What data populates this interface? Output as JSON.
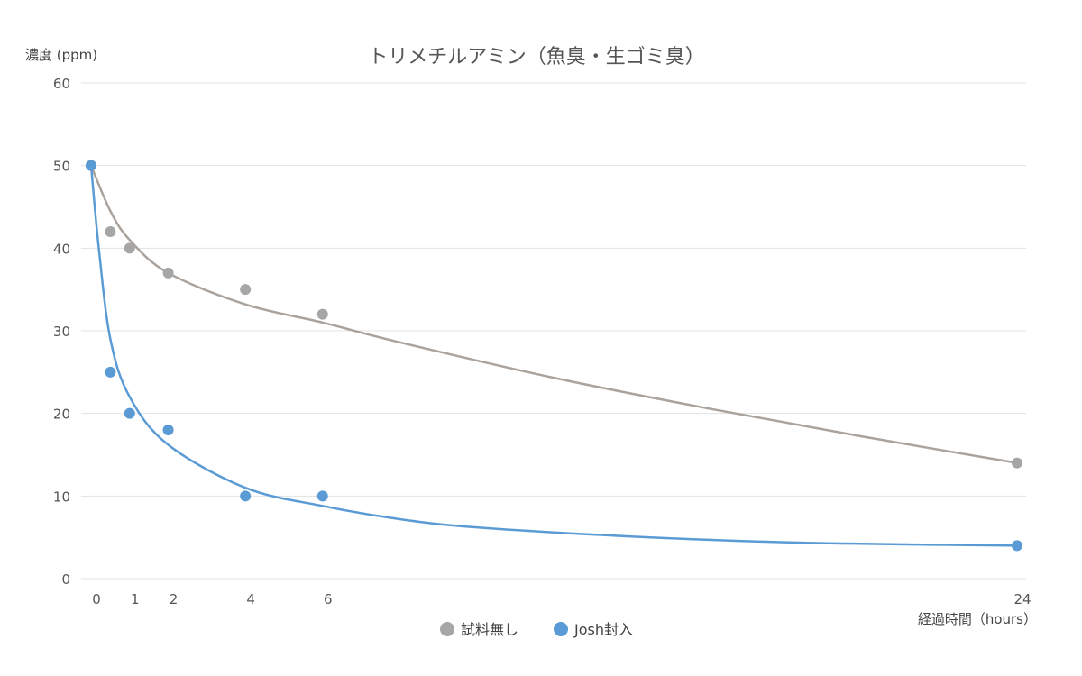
{
  "chart_data": {
    "type": "scatter",
    "title": "トリメチルアミン（魚臭・生ゴミ臭）",
    "ylabel": "濃度 (ppm)",
    "xlabel": "経過時間（hours）",
    "ylim": [
      0,
      60
    ],
    "yticks": [
      0,
      10,
      20,
      30,
      40,
      50,
      60
    ],
    "xlim": [
      0,
      24
    ],
    "xticks": [
      0,
      1,
      2,
      4,
      6,
      24
    ],
    "grid": true,
    "legend_position": "bottom",
    "series": [
      {
        "name": "試料無し",
        "color": "#a6a6a6",
        "curve_color": "#aaa39d",
        "x": [
          0,
          0.5,
          1,
          2,
          4,
          6,
          24
        ],
        "y": [
          50,
          42,
          40,
          37,
          35,
          32,
          14
        ],
        "trend": [
          [
            0,
            50
          ],
          [
            0.5,
            44.5
          ],
          [
            1,
            41
          ],
          [
            2,
            37
          ],
          [
            4,
            33.2
          ],
          [
            6,
            31
          ],
          [
            8,
            28.6
          ],
          [
            12,
            24.3
          ],
          [
            16,
            20.6
          ],
          [
            20,
            17.2
          ],
          [
            24,
            14
          ]
        ]
      },
      {
        "name": "Josh封入",
        "color": "#5b9bd5",
        "curve_color": "#5b9bd5",
        "x": [
          0,
          0.5,
          1,
          2,
          4,
          6,
          24
        ],
        "y": [
          50,
          25,
          20,
          18,
          10,
          10,
          4
        ],
        "trend": [
          [
            0,
            50
          ],
          [
            0.2,
            40
          ],
          [
            0.5,
            29
          ],
          [
            1,
            22
          ],
          [
            2,
            16.2
          ],
          [
            4,
            11
          ],
          [
            6,
            8.8
          ],
          [
            8,
            7.2
          ],
          [
            10,
            6.2
          ],
          [
            14,
            5.1
          ],
          [
            18,
            4.4
          ],
          [
            22,
            4.1
          ],
          [
            24,
            4
          ]
        ]
      }
    ]
  }
}
